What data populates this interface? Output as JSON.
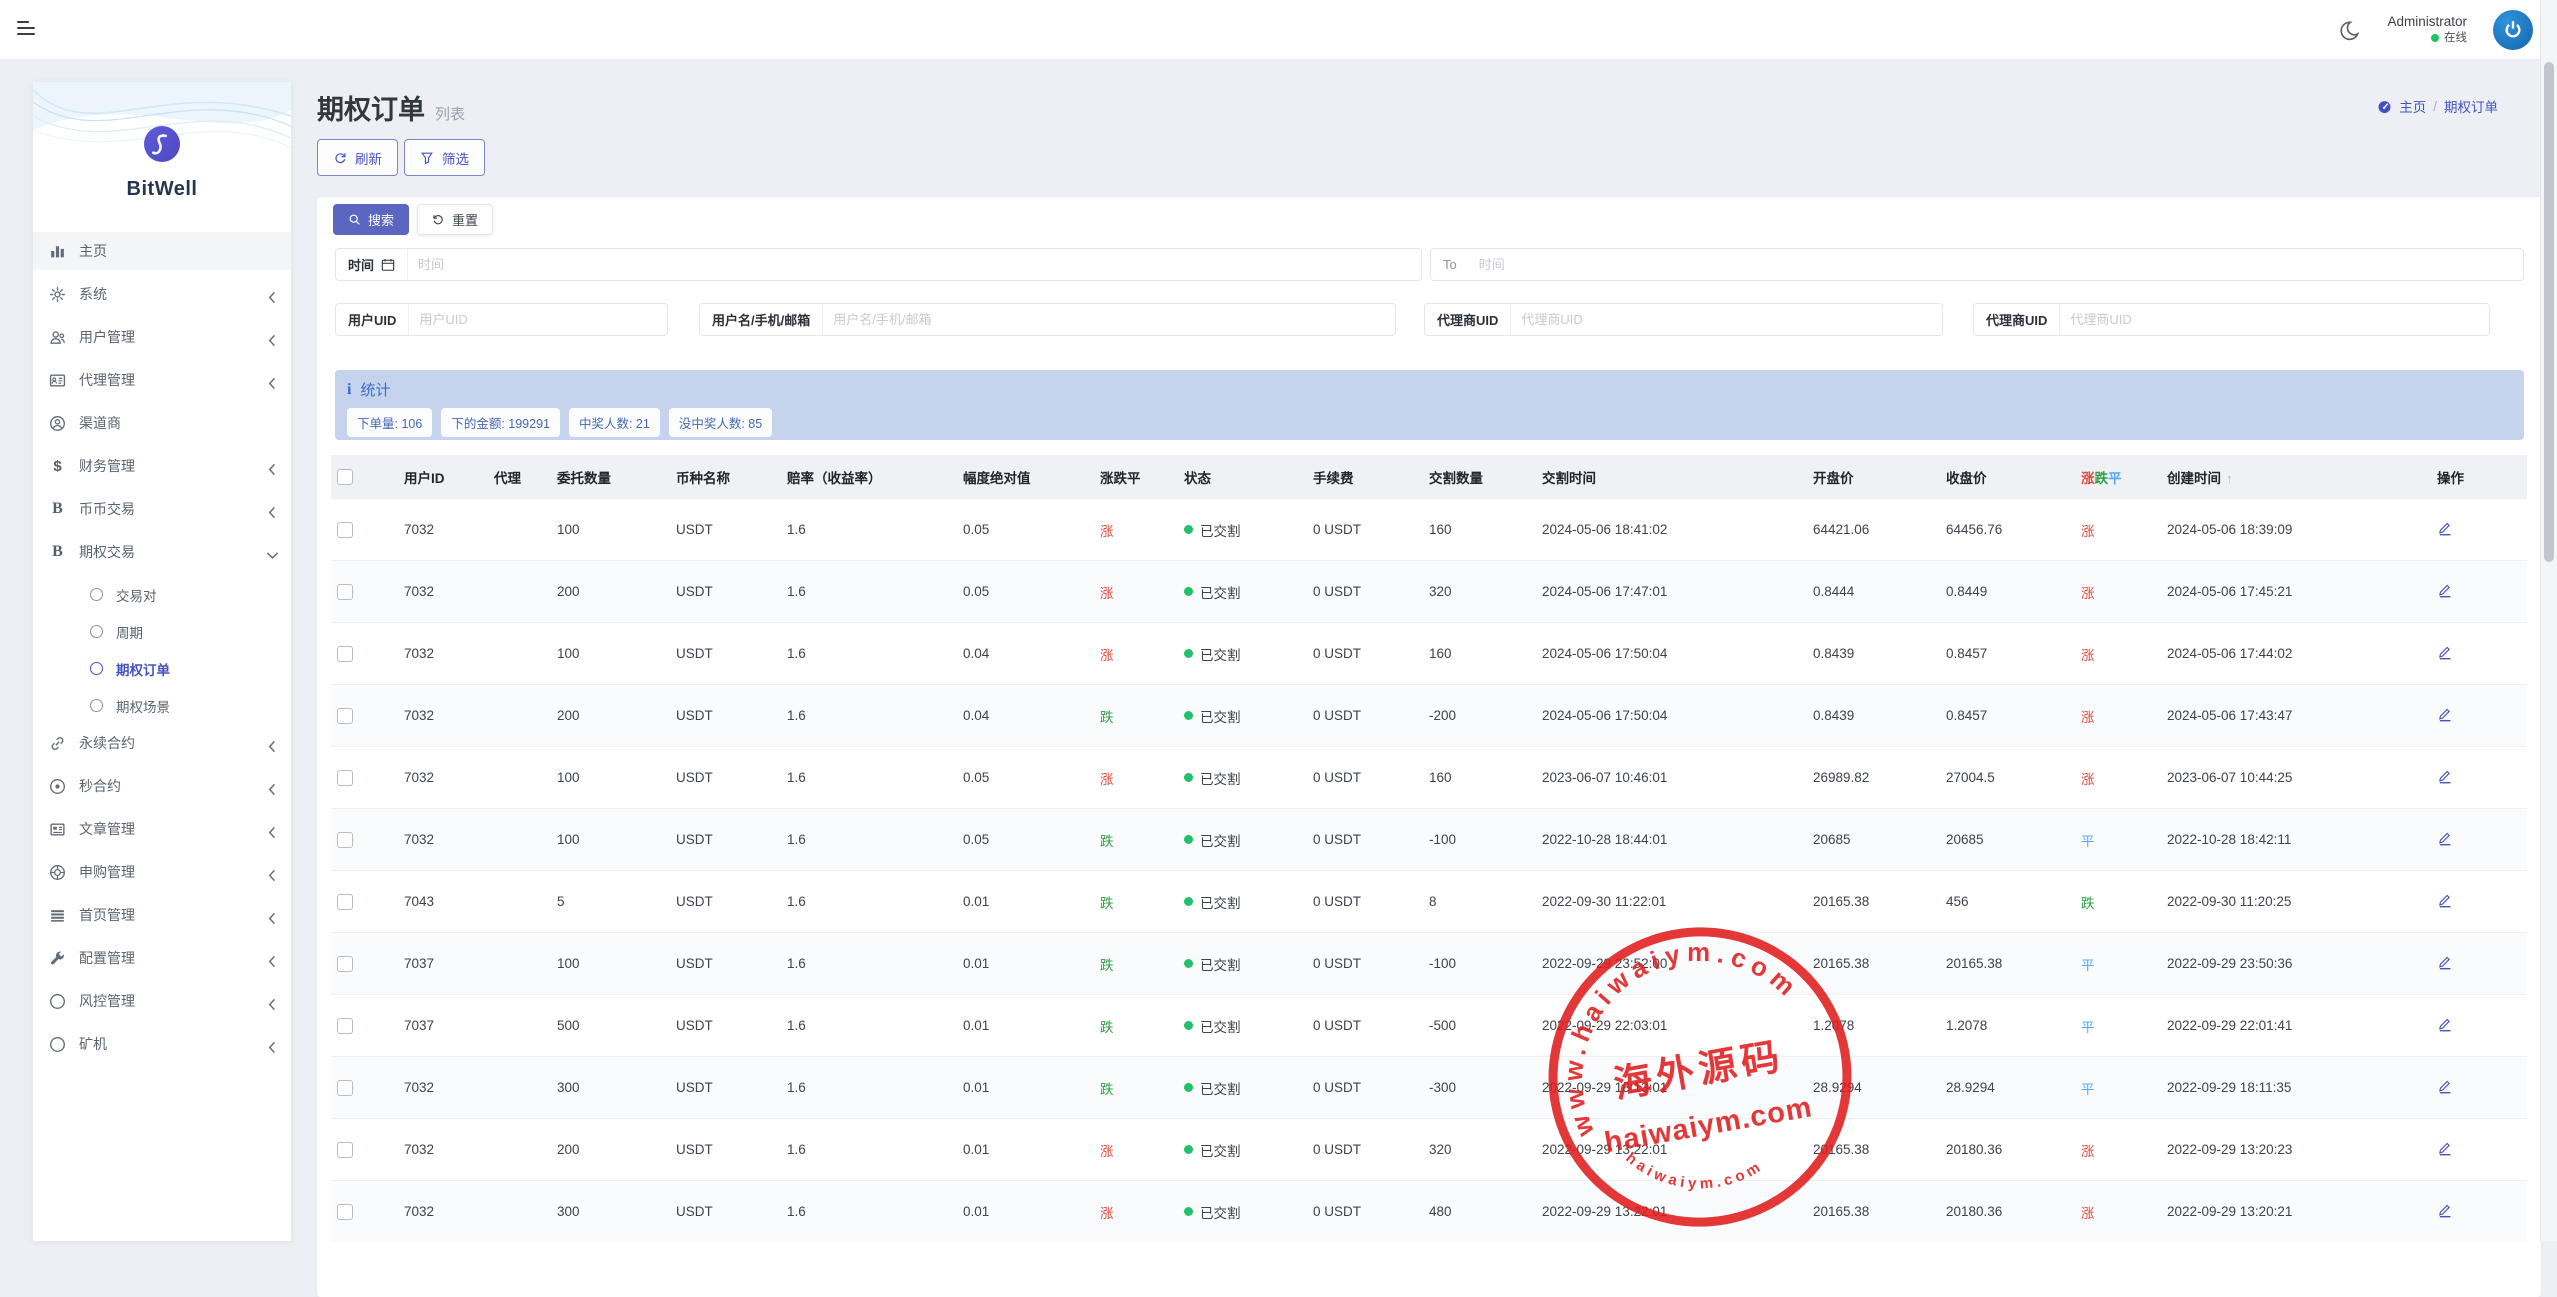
{
  "header": {
    "user_name": "Administrator",
    "user_status": "在线"
  },
  "sidebar": {
    "brand": "BitWell",
    "items": [
      {
        "key": "home",
        "label": "主页",
        "icon": "chart",
        "highlight": true
      },
      {
        "key": "system",
        "label": "系统",
        "icon": "gear",
        "has_children": true
      },
      {
        "key": "users",
        "label": "用户管理",
        "icon": "users",
        "has_children": true
      },
      {
        "key": "agents",
        "label": "代理管理",
        "icon": "idcard",
        "has_children": true
      },
      {
        "key": "channel",
        "label": "渠道商",
        "icon": "usercircle"
      },
      {
        "key": "finance",
        "label": "财务管理",
        "icon": "dollar",
        "has_children": true
      },
      {
        "key": "spot",
        "label": "币币交易",
        "icon": "letterb",
        "has_children": true
      },
      {
        "key": "options",
        "label": "期权交易",
        "icon": "bitcoin",
        "has_children": true,
        "expanded": true,
        "children": [
          {
            "key": "pairs",
            "label": "交易对"
          },
          {
            "key": "period",
            "label": "周期"
          },
          {
            "key": "option-orders",
            "label": "期权订单",
            "active": true
          },
          {
            "key": "option-scene",
            "label": "期权场景"
          }
        ]
      },
      {
        "key": "perpetual",
        "label": "永续合约",
        "icon": "link",
        "has_children": true
      },
      {
        "key": "seconds",
        "label": "秒合约",
        "icon": "circledot",
        "has_children": true
      },
      {
        "key": "articles",
        "label": "文章管理",
        "icon": "news",
        "has_children": true
      },
      {
        "key": "subscribe",
        "label": "申购管理",
        "icon": "lifebuoy",
        "has_children": true
      },
      {
        "key": "homepage",
        "label": "首页管理",
        "icon": "listbars",
        "has_children": true
      },
      {
        "key": "config",
        "label": "配置管理",
        "icon": "wrench",
        "has_children": true
      },
      {
        "key": "risk",
        "label": "风控管理",
        "icon": "circle",
        "has_children": true
      },
      {
        "key": "miner",
        "label": "矿机",
        "icon": "circle",
        "has_children": true
      }
    ]
  },
  "page": {
    "title": "期权订单",
    "subtitle": "列表",
    "breadcrumb": {
      "home": "主页",
      "current": "期权订单"
    },
    "toolbar": {
      "refresh": "刷新",
      "filter": "筛选"
    },
    "search": {
      "search_btn": "搜索",
      "reset_btn": "重置"
    },
    "filters": [
      {
        "key": "time_from",
        "label": "时间",
        "icon": "calendar",
        "placeholder": "时间"
      },
      {
        "key": "time_to",
        "label": "To",
        "muted": true,
        "placeholder": "时间"
      },
      {
        "key": "user_uid",
        "label": "用户UID",
        "placeholder": "用户UID"
      },
      {
        "key": "user_name",
        "label": "用户名/手机/邮箱",
        "placeholder": "用户名/手机/邮箱"
      },
      {
        "key": "agent_uid_1",
        "label": "代理商UID",
        "placeholder": "代理商UID"
      },
      {
        "key": "agent_uid_2",
        "label": "代理商UID",
        "placeholder": "代理商UID"
      }
    ],
    "stats": {
      "title": "统计",
      "badges": [
        {
          "label": "下单量",
          "value": "106"
        },
        {
          "label": "下的金额",
          "value": "199291"
        },
        {
          "label": "中奖人数",
          "value": "21"
        },
        {
          "label": "没中奖人数",
          "value": "85"
        }
      ]
    }
  },
  "table": {
    "columns": [
      {
        "label": "用户ID"
      },
      {
        "label": "代理"
      },
      {
        "label": "委托数量"
      },
      {
        "label": "币种名称"
      },
      {
        "label": "赔率（收益率）"
      },
      {
        "label": "幅度绝对值"
      },
      {
        "label": "涨跌平"
      },
      {
        "label": "状态"
      },
      {
        "label": "手续费"
      },
      {
        "label": "交割数量"
      },
      {
        "label": "交割时间"
      },
      {
        "label": "开盘价"
      },
      {
        "label": "收盘价"
      },
      {
        "label": "涨跌平",
        "multicolor": true
      },
      {
        "label": "创建时间",
        "sorted": "asc"
      },
      {
        "label": "操作"
      }
    ],
    "rows": [
      {
        "uid": "7032",
        "agent": "",
        "amount": "100",
        "coin": "USDT",
        "odds": "1.6",
        "range": "0.05",
        "direction": "涨",
        "status": "已交割",
        "fee": "0 USDT",
        "settle_amount": "160",
        "settle_time": "2024-05-06 18:41:02",
        "open_price": "64421.06",
        "close_price": "64456.76",
        "result": "涨",
        "created_at": "2024-05-06 18:39:09"
      },
      {
        "uid": "7032",
        "agent": "",
        "amount": "200",
        "coin": "USDT",
        "odds": "1.6",
        "range": "0.05",
        "direction": "涨",
        "status": "已交割",
        "fee": "0 USDT",
        "settle_amount": "320",
        "settle_time": "2024-05-06 17:47:01",
        "open_price": "0.8444",
        "close_price": "0.8449",
        "result": "涨",
        "created_at": "2024-05-06 17:45:21"
      },
      {
        "uid": "7032",
        "agent": "",
        "amount": "100",
        "coin": "USDT",
        "odds": "1.6",
        "range": "0.04",
        "direction": "涨",
        "status": "已交割",
        "fee": "0 USDT",
        "settle_amount": "160",
        "settle_time": "2024-05-06 17:50:04",
        "open_price": "0.8439",
        "close_price": "0.8457",
        "result": "涨",
        "created_at": "2024-05-06 17:44:02"
      },
      {
        "uid": "7032",
        "agent": "",
        "amount": "200",
        "coin": "USDT",
        "odds": "1.6",
        "range": "0.04",
        "direction": "跌",
        "status": "已交割",
        "fee": "0 USDT",
        "settle_amount": "-200",
        "settle_time": "2024-05-06 17:50:04",
        "open_price": "0.8439",
        "close_price": "0.8457",
        "result": "涨",
        "created_at": "2024-05-06 17:43:47"
      },
      {
        "uid": "7032",
        "agent": "",
        "amount": "100",
        "coin": "USDT",
        "odds": "1.6",
        "range": "0.05",
        "direction": "涨",
        "status": "已交割",
        "fee": "0 USDT",
        "settle_amount": "160",
        "settle_time": "2023-06-07 10:46:01",
        "open_price": "26989.82",
        "close_price": "27004.5",
        "result": "涨",
        "created_at": "2023-06-07 10:44:25"
      },
      {
        "uid": "7032",
        "agent": "",
        "amount": "100",
        "coin": "USDT",
        "odds": "1.6",
        "range": "0.05",
        "direction": "跌",
        "status": "已交割",
        "fee": "0 USDT",
        "settle_amount": "-100",
        "settle_time": "2022-10-28 18:44:01",
        "open_price": "20685",
        "close_price": "20685",
        "result": "平",
        "created_at": "2022-10-28 18:42:11"
      },
      {
        "uid": "7043",
        "agent": "",
        "amount": "5",
        "coin": "USDT",
        "odds": "1.6",
        "range": "0.01",
        "direction": "跌",
        "status": "已交割",
        "fee": "0 USDT",
        "settle_amount": "8",
        "settle_time": "2022-09-30 11:22:01",
        "open_price": "20165.38",
        "close_price": "456",
        "result": "跌",
        "created_at": "2022-09-30 11:20:25"
      },
      {
        "uid": "7037",
        "agent": "",
        "amount": "100",
        "coin": "USDT",
        "odds": "1.6",
        "range": "0.01",
        "direction": "跌",
        "status": "已交割",
        "fee": "0 USDT",
        "settle_amount": "-100",
        "settle_time": "2022-09-29 23:52:00",
        "open_price": "20165.38",
        "close_price": "20165.38",
        "result": "平",
        "created_at": "2022-09-29 23:50:36"
      },
      {
        "uid": "7037",
        "agent": "",
        "amount": "500",
        "coin": "USDT",
        "odds": "1.6",
        "range": "0.01",
        "direction": "跌",
        "status": "已交割",
        "fee": "0 USDT",
        "settle_amount": "-500",
        "settle_time": "2022-09-29 22:03:01",
        "open_price": "1.2078",
        "close_price": "1.2078",
        "result": "平",
        "created_at": "2022-09-29 22:01:41"
      },
      {
        "uid": "7032",
        "agent": "",
        "amount": "300",
        "coin": "USDT",
        "odds": "1.6",
        "range": "0.01",
        "direction": "跌",
        "status": "已交割",
        "fee": "0 USDT",
        "settle_amount": "-300",
        "settle_time": "2022-09-29 18:13:01",
        "open_price": "28.9294",
        "close_price": "28.9294",
        "result": "平",
        "created_at": "2022-09-29 18:11:35"
      },
      {
        "uid": "7032",
        "agent": "",
        "amount": "200",
        "coin": "USDT",
        "odds": "1.6",
        "range": "0.01",
        "direction": "涨",
        "status": "已交割",
        "fee": "0 USDT",
        "settle_amount": "320",
        "settle_time": "2022-09-29 13:22:01",
        "open_price": "20165.38",
        "close_price": "20180.36",
        "result": "涨",
        "created_at": "2022-09-29 13:20:23"
      },
      {
        "uid": "7032",
        "agent": "",
        "amount": "300",
        "coin": "USDT",
        "odds": "1.6",
        "range": "0.01",
        "direction": "涨",
        "status": "已交割",
        "fee": "0 USDT",
        "settle_amount": "480",
        "settle_time": "2022-09-29 13:22:01",
        "open_price": "20165.38",
        "close_price": "20180.36",
        "result": "涨",
        "created_at": "2022-09-29 13:20:21"
      }
    ]
  },
  "watermark": {
    "top": "www.haiwaiym.com",
    "name": "海外源码",
    "site": "haiwaiym.com",
    "bottom": "haiwaiym.com"
  },
  "colors": {
    "accent": "#4553c2",
    "up": "#dd4a3c",
    "down": "#2f9e44",
    "flat": "#55a9f2",
    "online": "#21c45d",
    "stats_bg": "#c5d4ec",
    "stamp": "#e01d1d"
  }
}
